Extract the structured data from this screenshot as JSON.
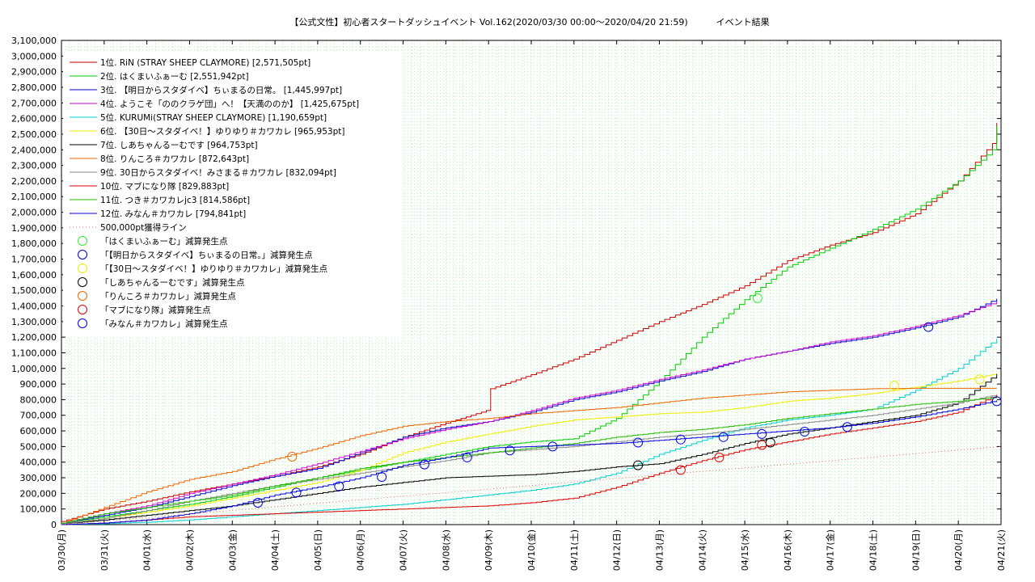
{
  "chart_data": {
    "type": "line",
    "title": "【公式文性】初心者スタートダッシュイベント Vol.162(2020/03/30 00:00〜2020/04/20 21:59)          イベント結果",
    "xlabel": "",
    "ylabel": "",
    "ylim": [
      0,
      3100000
    ],
    "y_step": 100000,
    "grid": true,
    "legend_position": "top-left",
    "x_tick_labels": [
      "03/30(月)",
      "03/31(火)",
      "04/01(水)",
      "04/02(木)",
      "04/03(金)",
      "04/04(土)",
      "04/05(日)",
      "04/06(月)",
      "04/07(火)",
      "04/08(水)",
      "04/09(木)",
      "04/10(金)",
      "04/11(土)",
      "04/12(日)",
      "04/13(月)",
      "04/14(火)",
      "04/15(水)",
      "04/16(木)",
      "04/17(金)",
      "04/18(土)",
      "04/19(日)",
      "04/20(月)",
      "04/21(火)"
    ],
    "x_days": [
      0,
      1,
      2,
      3,
      4,
      5,
      6,
      7,
      8,
      9,
      10,
      11,
      12,
      13,
      14,
      15,
      16,
      17,
      18,
      19,
      20,
      21,
      22
    ],
    "series": [
      {
        "name": "1位. RiN (STRAY SHEEP CLAYMORE) [2,571,505pt]",
        "color": "#cc0000",
        "x": [
          0,
          1,
          2,
          3,
          4,
          5,
          6,
          7,
          8,
          9,
          9.95,
          10.05,
          11,
          12,
          13,
          14,
          15,
          16,
          17,
          18,
          19,
          20,
          21,
          21.8,
          21.9
        ],
        "values": [
          20000,
          100000,
          150000,
          210000,
          260000,
          310000,
          370000,
          450000,
          560000,
          650000,
          730000,
          870000,
          960000,
          1060000,
          1180000,
          1300000,
          1410000,
          1530000,
          1690000,
          1790000,
          1870000,
          1990000,
          2200000,
          2440000,
          2571505
        ]
      },
      {
        "name": "2位. はくまいふぁーむ [2,551,942pt]",
        "color": "#00cc00",
        "x": [
          0,
          1,
          2,
          3,
          4,
          5,
          6,
          7,
          8,
          9,
          10,
          11,
          12,
          13,
          14,
          15,
          16,
          17,
          18,
          19,
          20,
          21,
          21.8,
          21.9
        ],
        "values": [
          10000,
          50000,
          90000,
          130000,
          180000,
          240000,
          300000,
          350000,
          400000,
          450000,
          500000,
          530000,
          550000,
          680000,
          920000,
          1200000,
          1440000,
          1650000,
          1770000,
          1890000,
          2020000,
          2200000,
          2400000,
          2551942
        ]
      },
      {
        "name": "3位. 【明日からスタダイベ】ちぃまるの日常。 [1,445,997pt]",
        "color": "#0000cc",
        "x": [
          0,
          1,
          2,
          3,
          4,
          5,
          6,
          7,
          8,
          9,
          10,
          11,
          12,
          13,
          14,
          15,
          16,
          17,
          18,
          19,
          20,
          21,
          21.9
        ],
        "values": [
          10000,
          60000,
          110000,
          180000,
          250000,
          310000,
          360000,
          460000,
          560000,
          620000,
          660000,
          720000,
          800000,
          850000,
          920000,
          980000,
          1060000,
          1110000,
          1160000,
          1200000,
          1260000,
          1330000,
          1445997
        ]
      },
      {
        "name": "4位. ようこそ「ののクラゲ団」へ！【天満ののか】 [1,425,675pt]",
        "color": "#cc00cc",
        "x": [
          0,
          1,
          2,
          3,
          4,
          5,
          6,
          7,
          8,
          9,
          10,
          11,
          12,
          13,
          14,
          15,
          16,
          17,
          18,
          19,
          20,
          21,
          21.9
        ],
        "values": [
          10000,
          70000,
          120000,
          200000,
          260000,
          320000,
          390000,
          470000,
          550000,
          610000,
          660000,
          730000,
          810000,
          860000,
          930000,
          990000,
          1060000,
          1110000,
          1170000,
          1210000,
          1270000,
          1340000,
          1425675
        ]
      },
      {
        "name": "5位. KURUMi(STRAY SHEEP CLAYMORE) [1,190,659pt]",
        "color": "#00cccc",
        "x": [
          0,
          1,
          2,
          3,
          4,
          5,
          6,
          7,
          8,
          9,
          10,
          11,
          12,
          13,
          14,
          15,
          16,
          17,
          18,
          19,
          20,
          21,
          21.9
        ],
        "values": [
          0,
          5000,
          15000,
          30000,
          50000,
          70000,
          90000,
          110000,
          130000,
          160000,
          190000,
          220000,
          260000,
          330000,
          450000,
          540000,
          620000,
          670000,
          700000,
          740000,
          860000,
          1000000,
          1190659
        ]
      },
      {
        "name": "6位. 【30日〜スタダイベ！】ゆりゆり＃カワカレ [965,953pt]",
        "color": "#eeee00",
        "x": [
          0,
          1,
          2,
          3,
          4,
          5,
          6,
          7,
          8,
          9,
          10,
          11,
          12,
          13,
          14,
          15,
          16,
          17,
          18,
          19,
          20,
          21,
          21.9
        ],
        "values": [
          5000,
          40000,
          80000,
          120000,
          170000,
          220000,
          270000,
          350000,
          460000,
          530000,
          580000,
          630000,
          670000,
          690000,
          710000,
          720000,
          750000,
          790000,
          810000,
          840000,
          880000,
          920000,
          965953
        ]
      },
      {
        "name": "7位. しあちゃんるーむです [964,753pt]",
        "color": "#000000",
        "x": [
          0,
          1,
          2,
          3,
          4,
          5,
          6,
          7,
          8,
          9,
          10,
          11,
          12,
          13,
          14,
          15,
          16,
          17,
          18,
          19,
          20,
          21,
          21.9
        ],
        "values": [
          5000,
          30000,
          60000,
          90000,
          120000,
          160000,
          200000,
          240000,
          270000,
          300000,
          310000,
          320000,
          340000,
          370000,
          390000,
          450000,
          520000,
          580000,
          620000,
          660000,
          700000,
          780000,
          964753
        ]
      },
      {
        "name": "8位. りんころ＃カワカレ [872,643pt]",
        "color": "#ee6600",
        "x": [
          0,
          1,
          2,
          3,
          4,
          5,
          6,
          7,
          8,
          9,
          10,
          11,
          12,
          13,
          14,
          15,
          16,
          17,
          18,
          19,
          20,
          21,
          21.9
        ],
        "values": [
          10000,
          110000,
          210000,
          290000,
          340000,
          420000,
          490000,
          570000,
          630000,
          660000,
          680000,
          710000,
          730000,
          750000,
          780000,
          810000,
          830000,
          850000,
          860000,
          870000,
          872643,
          872643,
          872643
        ]
      },
      {
        "name": "9位. 30日からスタダイベ！みさまる＃カワカレ [832,094pt]",
        "color": "#888888",
        "x": [
          0,
          1,
          2,
          3,
          4,
          5,
          6,
          7,
          8,
          9,
          10,
          11,
          12,
          13,
          14,
          15,
          16,
          17,
          18,
          19,
          20,
          21,
          21.9
        ],
        "values": [
          5000,
          40000,
          90000,
          150000,
          200000,
          250000,
          290000,
          330000,
          370000,
          410000,
          460000,
          480000,
          500000,
          530000,
          560000,
          580000,
          610000,
          640000,
          670000,
          700000,
          740000,
          780000,
          832094
        ]
      },
      {
        "name": "10位. マブになり隊 [829,883pt]",
        "color": "#dd0000",
        "x": [
          0,
          1,
          2,
          3,
          4,
          5,
          6,
          7,
          8,
          9,
          10,
          11,
          12,
          13,
          14,
          15,
          16,
          17,
          18,
          19,
          20,
          21,
          21.9
        ],
        "values": [
          0,
          10000,
          30000,
          50000,
          60000,
          70000,
          80000,
          90000,
          100000,
          110000,
          120000,
          140000,
          170000,
          240000,
          330000,
          410000,
          480000,
          530000,
          580000,
          620000,
          660000,
          720000,
          829883
        ]
      },
      {
        "name": "11位. つき＃カワカレjc3 [814,586pt]",
        "color": "#22bb00",
        "x": [
          0,
          1,
          2,
          3,
          4,
          5,
          6,
          7,
          8,
          9,
          10,
          11,
          12,
          13,
          14,
          15,
          16,
          17,
          18,
          19,
          20,
          21,
          21.9
        ],
        "values": [
          10000,
          70000,
          110000,
          150000,
          190000,
          250000,
          300000,
          360000,
          400000,
          430000,
          460000,
          490000,
          520000,
          560000,
          590000,
          610000,
          640000,
          680000,
          710000,
          740000,
          770000,
          790000,
          814586
        ]
      },
      {
        "name": "12位. みなん＃カワカレ [794,841pt]",
        "color": "#0000dd",
        "x": [
          0,
          1,
          2,
          3,
          4,
          5,
          6,
          7,
          8,
          9,
          10,
          11,
          12,
          13,
          14,
          15,
          16,
          17,
          18,
          19,
          20,
          21,
          21.9
        ],
        "values": [
          0,
          10000,
          30000,
          70000,
          120000,
          190000,
          240000,
          300000,
          380000,
          430000,
          490000,
          500000,
          510000,
          520000,
          540000,
          560000,
          580000,
          600000,
          620000,
          650000,
          690000,
          740000,
          794841
        ]
      },
      {
        "name": "500,000pt獲得ライン",
        "color": "#dd6666",
        "style": "dotted",
        "x": [
          0,
          22
        ],
        "values": [
          0,
          500000
        ]
      }
    ],
    "reduction_points": [
      {
        "name": "「はくまいふぁーむ」減算発生点",
        "color": "#33ee33",
        "x": [
          16.3
        ],
        "values": [
          1450000
        ]
      },
      {
        "name": "「【明日からスタダイベ】ちぃまるの日常。」減算発生点",
        "color": "#0000cc",
        "x": [
          20.3
        ],
        "values": [
          1265000
        ]
      },
      {
        "name": "「【30日〜スタダイベ！】ゆりゆり＃カワカレ」減算発生点",
        "color": "#eeee00",
        "x": [
          19.5,
          21.5
        ],
        "values": [
          890000,
          930000
        ]
      },
      {
        "name": "「しあちゃんるーむです」減算発生点",
        "color": "#000000",
        "x": [
          13.5,
          16.6
        ],
        "values": [
          380000,
          525000
        ]
      },
      {
        "name": "「りんころ＃カワカレ」減算発生点",
        "color": "#ee6600",
        "x": [
          5.4
        ],
        "values": [
          435000
        ]
      },
      {
        "name": "「マブになり隊」減算発生点",
        "color": "#dd0000",
        "x": [
          14.5,
          15.4,
          16.4
        ],
        "values": [
          350000,
          430000,
          510000
        ]
      },
      {
        "name": "「みなん＃カワカレ」減算発生点",
        "color": "#0000dd",
        "x": [
          4.6,
          5.5,
          6.5,
          7.5,
          8.5,
          9.5,
          10.5,
          11.5,
          13.5,
          14.5,
          15.5,
          16.4,
          17.4,
          18.4,
          21.9
        ],
        "values": [
          140000,
          205000,
          245000,
          305000,
          385000,
          430000,
          475000,
          500000,
          525000,
          545000,
          560000,
          580000,
          595000,
          625000,
          790000
        ]
      }
    ]
  }
}
